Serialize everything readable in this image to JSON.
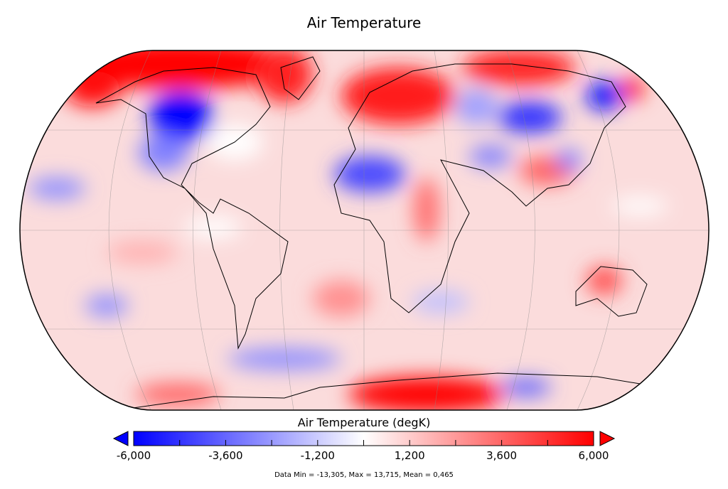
{
  "title": "Air Temperature",
  "colorbar": {
    "title": "Air Temperature (degK)",
    "min": -6000,
    "max": 6000,
    "tick_labels": [
      "-6,000",
      "-3,600",
      "-1,200",
      "1,200",
      "3,600",
      "6,000"
    ],
    "tick_values": [
      -6000,
      -3600,
      -1200,
      1200,
      3600,
      6000
    ],
    "minor_tick_step": 1200,
    "colors": {
      "low": "#0000ff",
      "mid": "#ffffff",
      "high": "#ff0000"
    },
    "extends": "both"
  },
  "footer": "Data Min = -13,305, Max = 13,715, Mean = 0,465",
  "map": {
    "projection": "Robinson",
    "graticule": true,
    "coastlines": true
  }
}
